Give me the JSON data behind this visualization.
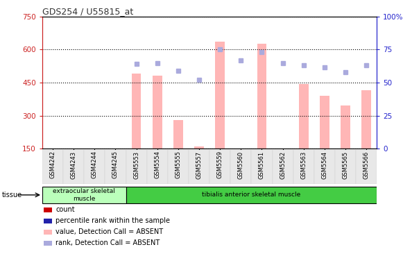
{
  "title": "GDS254 / U55815_at",
  "samples": [
    "GSM4242",
    "GSM4243",
    "GSM4244",
    "GSM4245",
    "GSM5553",
    "GSM5554",
    "GSM5555",
    "GSM5557",
    "GSM5559",
    "GSM5560",
    "GSM5561",
    "GSM5562",
    "GSM5563",
    "GSM5564",
    "GSM5565",
    "GSM5566"
  ],
  "bar_values": [
    null,
    null,
    null,
    null,
    490,
    480,
    280,
    160,
    635,
    null,
    625,
    null,
    445,
    390,
    345,
    415
  ],
  "dot_values": [
    null,
    null,
    null,
    null,
    535,
    538,
    503,
    462,
    600,
    552,
    590,
    538,
    528,
    518,
    498,
    528
  ],
  "ylim_left": [
    150,
    750
  ],
  "ylim_right": [
    0,
    100
  ],
  "yticks_left": [
    150,
    300,
    450,
    600,
    750
  ],
  "yticks_right": [
    0,
    25,
    50,
    75,
    100
  ],
  "tissue_groups": [
    {
      "label": "extraocular skeletal\nmuscle",
      "start": 0,
      "end": 4,
      "color_light": "#ccffcc",
      "color_dark": "#55cc55"
    },
    {
      "label": "tibialis anterior skeletal muscle",
      "start": 4,
      "end": 16,
      "color_light": "#44dd44",
      "color_dark": "#22aa22"
    }
  ],
  "bar_color": "#ffb6b6",
  "dot_color": "#aaaadd",
  "bar_width": 0.45,
  "left_axis_color": "#cc2222",
  "right_axis_color": "#2222cc",
  "legend_items": [
    {
      "label": "count",
      "color": "#cc0000"
    },
    {
      "label": "percentile rank within the sample",
      "color": "#2222aa"
    },
    {
      "label": "value, Detection Call = ABSENT",
      "color": "#ffb6b6"
    },
    {
      "label": "rank, Detection Call = ABSENT",
      "color": "#aaaadd"
    }
  ]
}
